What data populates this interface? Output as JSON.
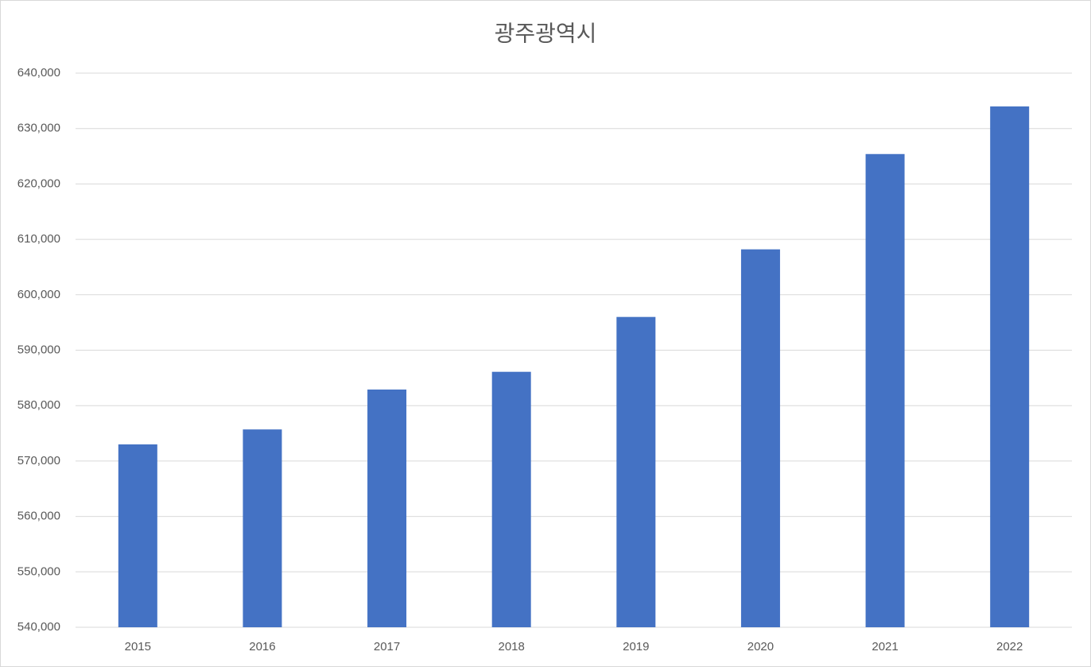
{
  "chart_data": {
    "type": "bar",
    "title": "광주광역시",
    "categories": [
      "2015",
      "2016",
      "2017",
      "2018",
      "2019",
      "2020",
      "2021",
      "2022"
    ],
    "values": [
      573000,
      575700,
      582900,
      586100,
      596000,
      608200,
      625400,
      634000
    ],
    "color": "#4472c4",
    "ylim": [
      540000,
      640000
    ],
    "yticks": [
      {
        "value": 540000,
        "label": "540,000"
      },
      {
        "value": 550000,
        "label": "550,000"
      },
      {
        "value": 560000,
        "label": "560,000"
      },
      {
        "value": 570000,
        "label": "570,000"
      },
      {
        "value": 580000,
        "label": "580,000"
      },
      {
        "value": 590000,
        "label": "590,000"
      },
      {
        "value": 600000,
        "label": "600,000"
      },
      {
        "value": 610000,
        "label": "610,000"
      },
      {
        "value": 620000,
        "label": "620,000"
      },
      {
        "value": 630000,
        "label": "630,000"
      },
      {
        "value": 640000,
        "label": "640,000"
      }
    ],
    "grid": true
  }
}
